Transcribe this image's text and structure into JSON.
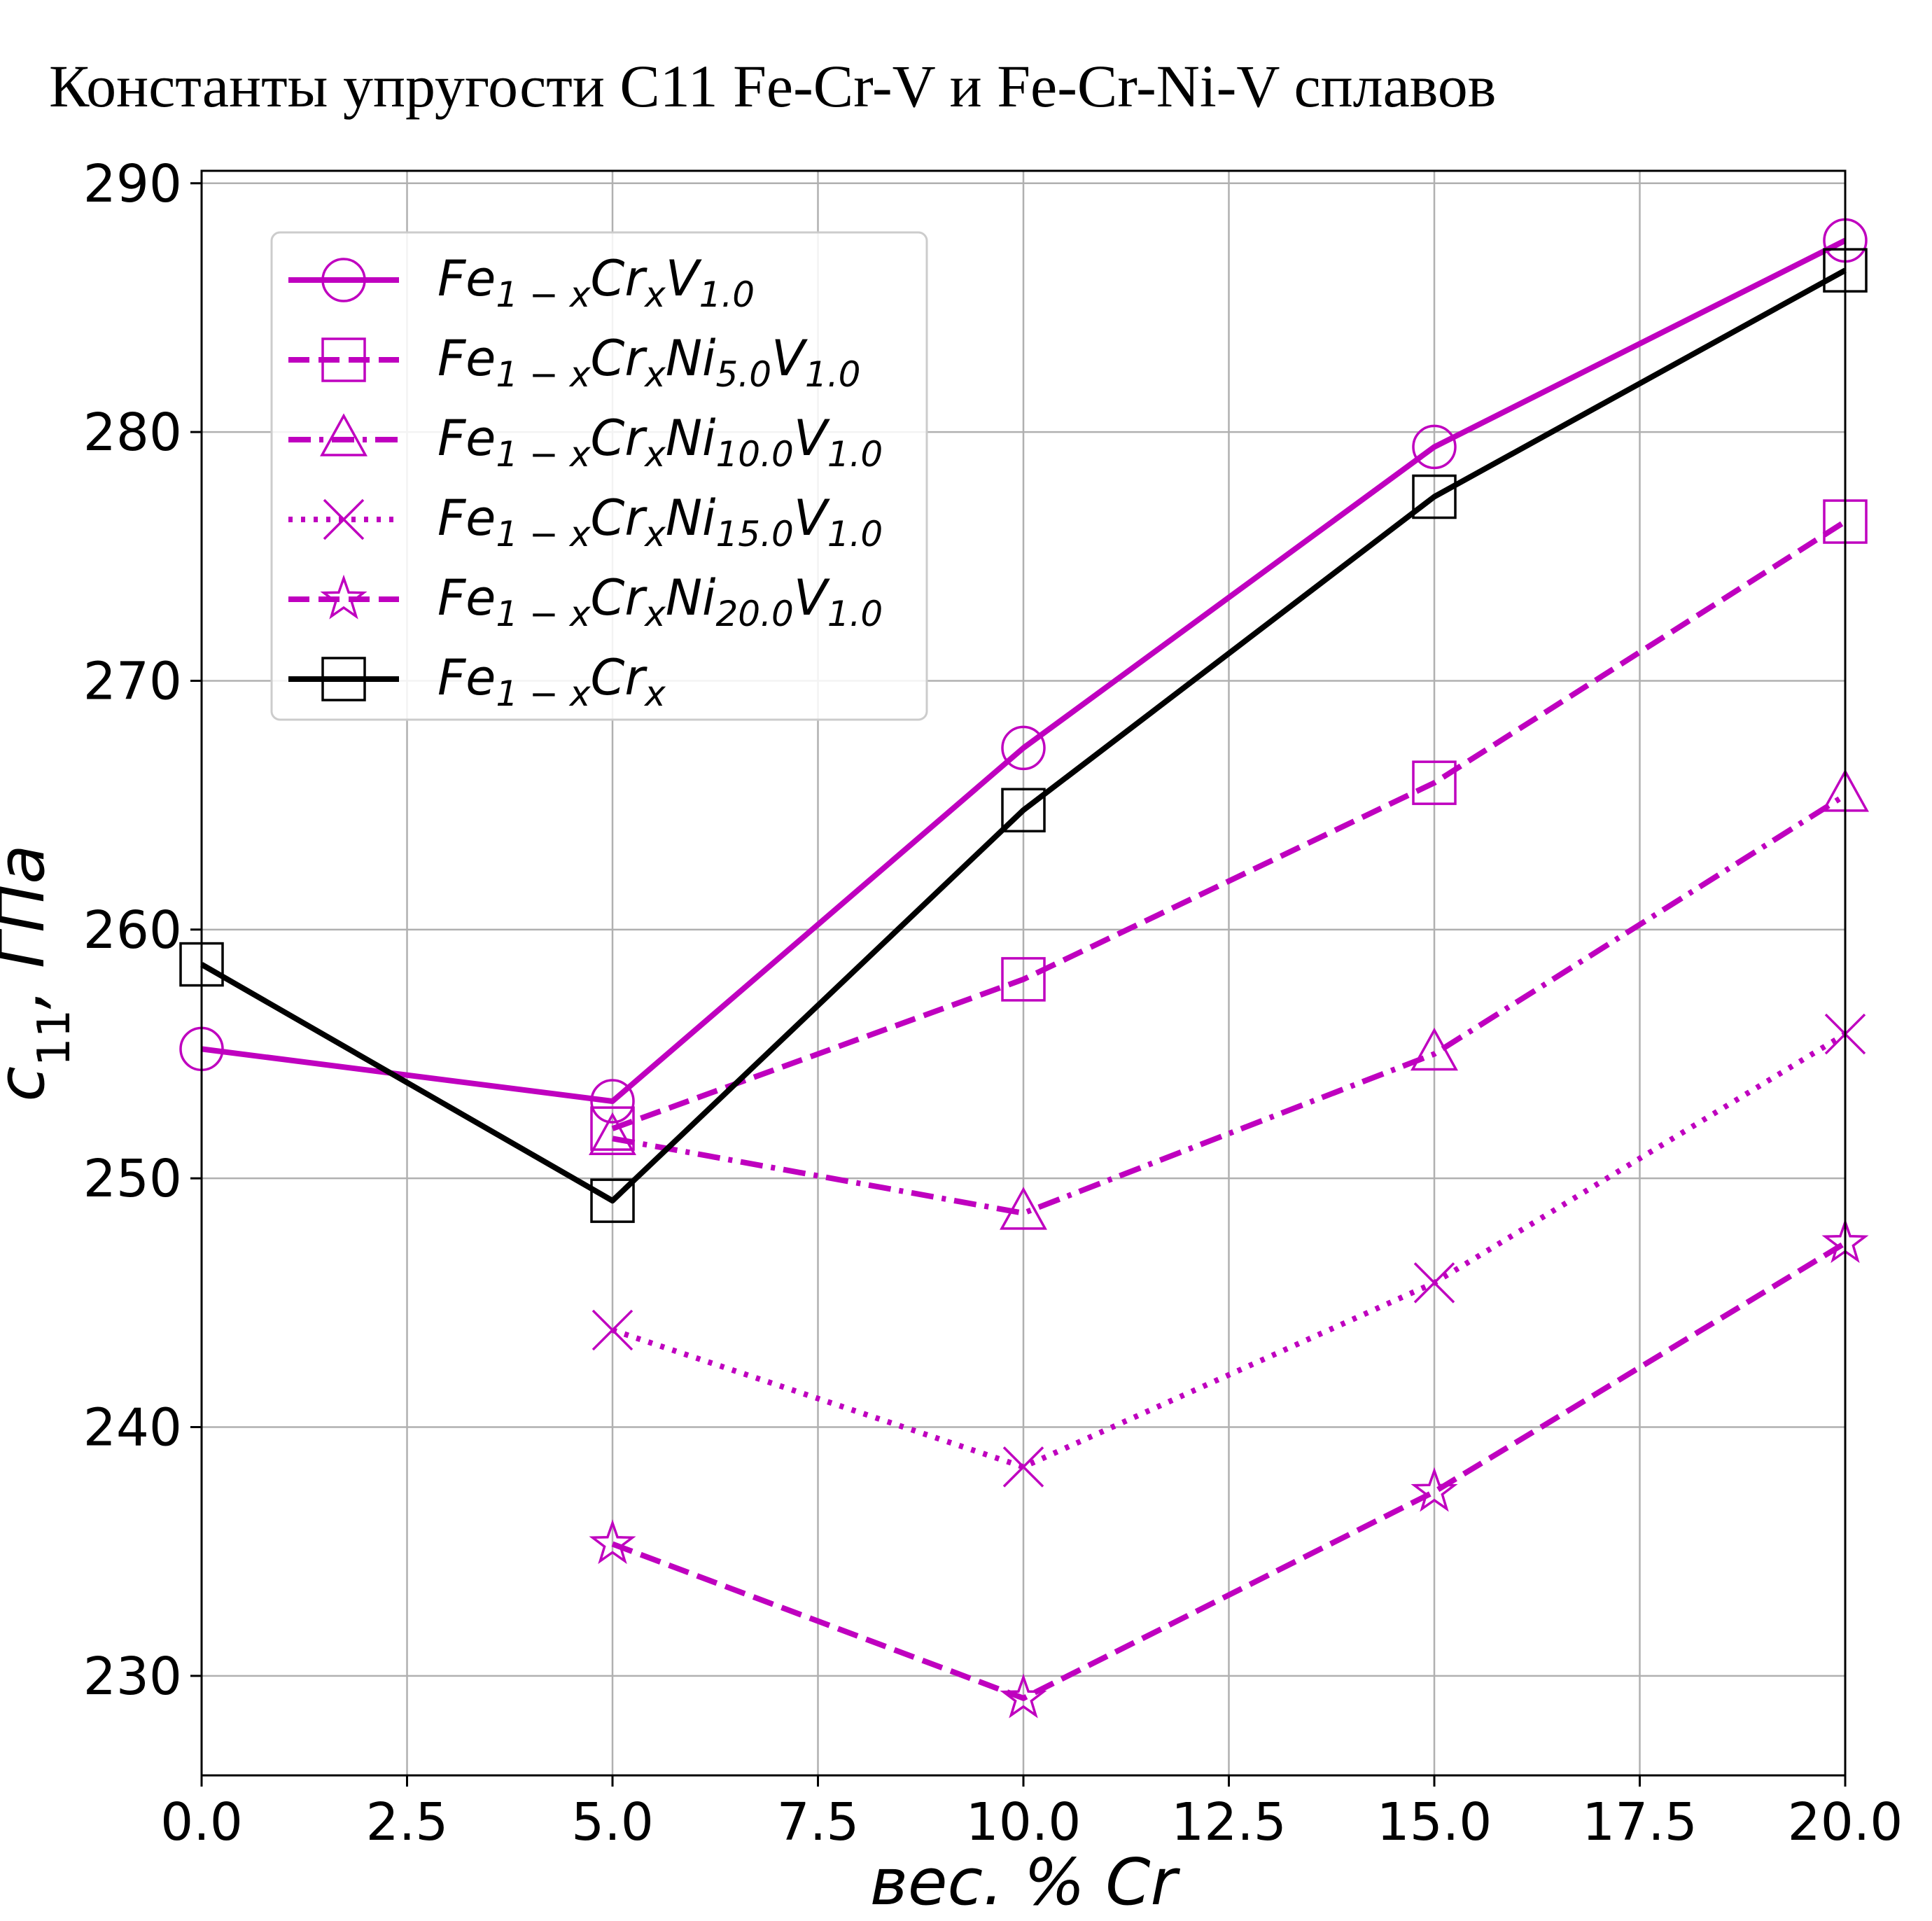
{
  "chart_data": {
    "type": "line",
    "title": "Константы упругости C11 Fe-Cr-V и Fe-Cr-Ni-V сплавов",
    "xlabel": "вес. % Cr",
    "ylabel": "c11, ГПа",
    "xlim": [
      0,
      20
    ],
    "ylim": [
      226,
      290.5
    ],
    "x_ticks": [
      "0.0",
      "2.5",
      "5.0",
      "7.5",
      "10.0",
      "12.5",
      "15.0",
      "17.5",
      "20.0"
    ],
    "y_ticks": [
      "230",
      "240",
      "250",
      "260",
      "270",
      "280",
      "290"
    ],
    "grid": true,
    "legend_position": "upper-left",
    "series": [
      {
        "name": "Fe1−xCrxV1.0",
        "legend_parts": [
          [
            "Fe",
            ""
          ],
          [
            "1 − x",
            "sub"
          ],
          [
            "Cr",
            ""
          ],
          [
            "x",
            "sub"
          ],
          [
            "V",
            ""
          ],
          [
            "1.0",
            "sub"
          ]
        ],
        "color": "#bf00bf",
        "line": "solid",
        "marker": "circle",
        "x": [
          0,
          5,
          10,
          15,
          20
        ],
        "y": [
          255.2,
          253.1,
          267.3,
          279.4,
          287.7
        ]
      },
      {
        "name": "Fe1−xCrxNi5.0V1.0",
        "legend_parts": [
          [
            "Fe",
            ""
          ],
          [
            "1 − x",
            "sub"
          ],
          [
            "Cr",
            ""
          ],
          [
            "x",
            "sub"
          ],
          [
            "Ni",
            ""
          ],
          [
            "5.0",
            "sub"
          ],
          [
            "V",
            ""
          ],
          [
            "1.0",
            "sub"
          ]
        ],
        "color": "#bf00bf",
        "line": "dashed",
        "marker": "square",
        "x": [
          5,
          10,
          15,
          20
        ],
        "y": [
          252.0,
          258.0,
          265.9,
          276.4
        ]
      },
      {
        "name": "Fe1−xCrxNi10.0V1.0",
        "legend_parts": [
          [
            "Fe",
            ""
          ],
          [
            "1 − x",
            "sub"
          ],
          [
            "Cr",
            ""
          ],
          [
            "x",
            "sub"
          ],
          [
            "Ni",
            ""
          ],
          [
            "10.0",
            "sub"
          ],
          [
            "V",
            ""
          ],
          [
            "1.0",
            "sub"
          ]
        ],
        "color": "#bf00bf",
        "line": "dashdot",
        "marker": "triangle",
        "x": [
          5,
          10,
          15,
          20
        ],
        "y": [
          251.6,
          248.6,
          255.0,
          265.4
        ]
      },
      {
        "name": "Fe1−xCrxNi15.0V1.0",
        "legend_parts": [
          [
            "Fe",
            ""
          ],
          [
            "1 − x",
            "sub"
          ],
          [
            "Cr",
            ""
          ],
          [
            "x",
            "sub"
          ],
          [
            "Ni",
            ""
          ],
          [
            "15.0",
            "sub"
          ],
          [
            "V",
            ""
          ],
          [
            "1.0",
            "sub"
          ]
        ],
        "color": "#bf00bf",
        "line": "dotted",
        "marker": "x",
        "x": [
          5,
          10,
          15,
          20
        ],
        "y": [
          243.9,
          238.4,
          245.8,
          255.8
        ]
      },
      {
        "name": "Fe1−xCrxNi20.0V1.0",
        "legend_parts": [
          [
            "Fe",
            ""
          ],
          [
            "1 − x",
            "sub"
          ],
          [
            "Cr",
            ""
          ],
          [
            "x",
            "sub"
          ],
          [
            "Ni",
            ""
          ],
          [
            "20.0",
            "sub"
          ],
          [
            "V",
            ""
          ],
          [
            "1.0",
            "sub"
          ]
        ],
        "color": "#bf00bf",
        "line": "dashed",
        "marker": "star",
        "x": [
          5,
          10,
          15,
          20
        ],
        "y": [
          235.3,
          229.1,
          237.4,
          247.4
        ]
      },
      {
        "name": "Fe1−xCrx",
        "legend_parts": [
          [
            "Fe",
            ""
          ],
          [
            "1 − x",
            "sub"
          ],
          [
            "Cr",
            ""
          ],
          [
            "x",
            "sub"
          ]
        ],
        "color": "#000000",
        "line": "solid",
        "marker": "square",
        "x": [
          0,
          5,
          10,
          15,
          20
        ],
        "y": [
          258.6,
          249.1,
          264.8,
          277.4,
          286.5
        ]
      }
    ]
  }
}
